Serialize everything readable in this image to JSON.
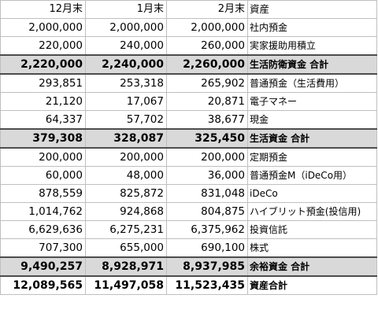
{
  "headers": [
    "12月末",
    "1月末",
    "2月末",
    "資産"
  ],
  "rows": [
    {
      "type": "item",
      "c1": "2,000,000",
      "c2": "2,000,000",
      "c3": "2,000,000",
      "label": "社内預金"
    },
    {
      "type": "item",
      "c1": "220,000",
      "c2": "240,000",
      "c3": "260,000",
      "label": "実家援助用積立"
    },
    {
      "type": "subtotal",
      "c1": "2,220,000",
      "c2": "2,240,000",
      "c3": "2,260,000",
      "label": "生活防衛資金 合計"
    },
    {
      "type": "item",
      "c1": "293,851",
      "c2": "253,318",
      "c3": "265,902",
      "label": "普通預金（生活費用）"
    },
    {
      "type": "item",
      "c1": "21,120",
      "c2": "17,067",
      "c3": "20,871",
      "label": "電子マネー"
    },
    {
      "type": "item",
      "c1": "64,337",
      "c2": "57,702",
      "c3": "38,677",
      "label": "現金"
    },
    {
      "type": "subtotal",
      "c1": "379,308",
      "c2": "328,087",
      "c3": "325,450",
      "label": "生活資金 合計"
    },
    {
      "type": "item",
      "c1": "200,000",
      "c2": "200,000",
      "c3": "200,000",
      "label": "定期預金"
    },
    {
      "type": "item",
      "c1": "60,000",
      "c2": "48,000",
      "c3": "36,000",
      "label": "普通預金M（iDeCo用）"
    },
    {
      "type": "item",
      "c1": "878,559",
      "c2": "825,872",
      "c3": "831,048",
      "label": "iDeCo"
    },
    {
      "type": "item",
      "c1": "1,014,762",
      "c2": "924,868",
      "c3": "804,875",
      "label": "ハイブリット預金(投信用)"
    },
    {
      "type": "item",
      "c1": "6,629,636",
      "c2": "6,275,231",
      "c3": "6,375,962",
      "label": "投資信託"
    },
    {
      "type": "item",
      "c1": "707,300",
      "c2": "655,000",
      "c3": "690,100",
      "label": "株式"
    },
    {
      "type": "subtotal",
      "c1": "9,490,257",
      "c2": "8,928,971",
      "c3": "8,937,985",
      "label": "余裕資金 合計"
    },
    {
      "type": "total",
      "c1": "12,089,565",
      "c2": "11,497,058",
      "c3": "11,523,435",
      "label": "資産合計"
    }
  ]
}
